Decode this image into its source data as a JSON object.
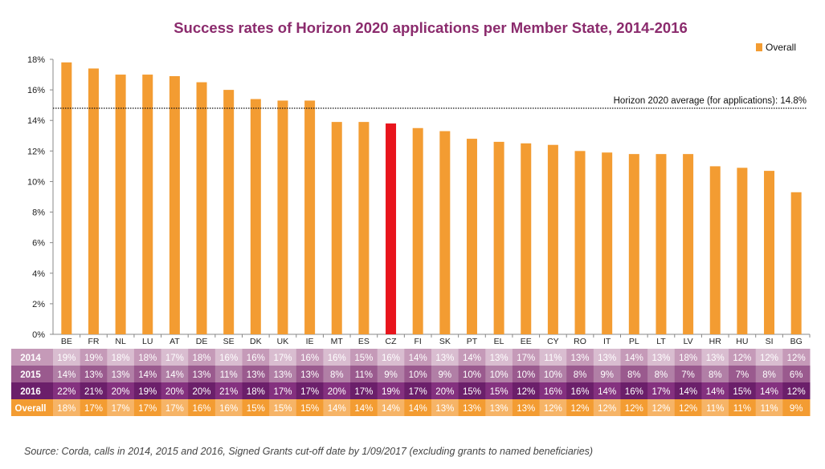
{
  "chart_data": {
    "type": "bar",
    "title": "Success rates of Horizon 2020 applications per Member State, 2014-2016",
    "legend": [
      "Overall"
    ],
    "legend_position": "top-right",
    "categories": [
      "BE",
      "FR",
      "NL",
      "LU",
      "AT",
      "DE",
      "SE",
      "DK",
      "UK",
      "IE",
      "MT",
      "ES",
      "CZ",
      "FI",
      "SK",
      "PT",
      "EL",
      "EE",
      "CY",
      "RO",
      "IT",
      "PL",
      "LT",
      "LV",
      "HR",
      "HU",
      "SI",
      "BG"
    ],
    "series": [
      {
        "name": "Overall",
        "values": [
          17.8,
          17.4,
          17.0,
          17.0,
          16.9,
          16.5,
          16.0,
          15.4,
          15.3,
          15.3,
          13.9,
          13.9,
          13.8,
          13.5,
          13.3,
          12.8,
          12.6,
          12.5,
          12.4,
          12.0,
          11.9,
          11.8,
          11.8,
          11.8,
          11.0,
          10.9,
          10.7,
          9.3
        ]
      }
    ],
    "highlight": "CZ",
    "ylim": [
      0,
      18
    ],
    "yticks": [
      "0%",
      "2%",
      "4%",
      "6%",
      "8%",
      "10%",
      "12%",
      "14%",
      "16%",
      "18%"
    ],
    "reference_line": {
      "value": 14.8,
      "label": "Horizon 2020 average (for applications): 14.8%"
    },
    "table": {
      "rows": [
        {
          "label": "2014",
          "values": [
            "19%",
            "19%",
            "18%",
            "18%",
            "17%",
            "18%",
            "16%",
            "16%",
            "17%",
            "16%",
            "16%",
            "15%",
            "16%",
            "14%",
            "13%",
            "14%",
            "13%",
            "17%",
            "11%",
            "13%",
            "13%",
            "14%",
            "13%",
            "18%",
            "13%",
            "12%",
            "12%",
            "12%"
          ]
        },
        {
          "label": "2015",
          "values": [
            "14%",
            "13%",
            "13%",
            "14%",
            "14%",
            "13%",
            "11%",
            "13%",
            "13%",
            "13%",
            "8%",
            "11%",
            "9%",
            "10%",
            "9%",
            "10%",
            "10%",
            "10%",
            "10%",
            "8%",
            "9%",
            "8%",
            "8%",
            "7%",
            "8%",
            "7%",
            "8%",
            "6%"
          ]
        },
        {
          "label": "2016",
          "values": [
            "22%",
            "21%",
            "20%",
            "19%",
            "20%",
            "20%",
            "21%",
            "18%",
            "17%",
            "17%",
            "20%",
            "17%",
            "19%",
            "17%",
            "20%",
            "15%",
            "15%",
            "12%",
            "16%",
            "16%",
            "14%",
            "16%",
            "17%",
            "14%",
            "14%",
            "15%",
            "14%",
            "12%"
          ]
        },
        {
          "label": "Overall",
          "values": [
            "18%",
            "17%",
            "17%",
            "17%",
            "17%",
            "16%",
            "16%",
            "15%",
            "15%",
            "15%",
            "14%",
            "14%",
            "14%",
            "14%",
            "13%",
            "13%",
            "13%",
            "13%",
            "12%",
            "12%",
            "12%",
            "12%",
            "12%",
            "12%",
            "11%",
            "11%",
            "11%",
            "9%"
          ]
        }
      ]
    }
  },
  "colors": {
    "bar": "#f39c32",
    "highlight": "#e8141c",
    "title": "#8b2b6d",
    "row_2014_dark": "#c59ab8",
    "row_2014_light": "#d9bdd0",
    "row_2015_dark": "#9a5a8e",
    "row_2015_light": "#b17fa6",
    "row_2016_dark": "#6b1f6a",
    "row_2016_light": "#84317f",
    "row_overall_dark": "#f39c32",
    "row_overall_light": "#f6b467"
  },
  "source": "Source: Corda, calls in 2014, 2015 and 2016, Signed Grants cut-off date by 1/09/2017 (excluding grants to named beneficiaries)"
}
